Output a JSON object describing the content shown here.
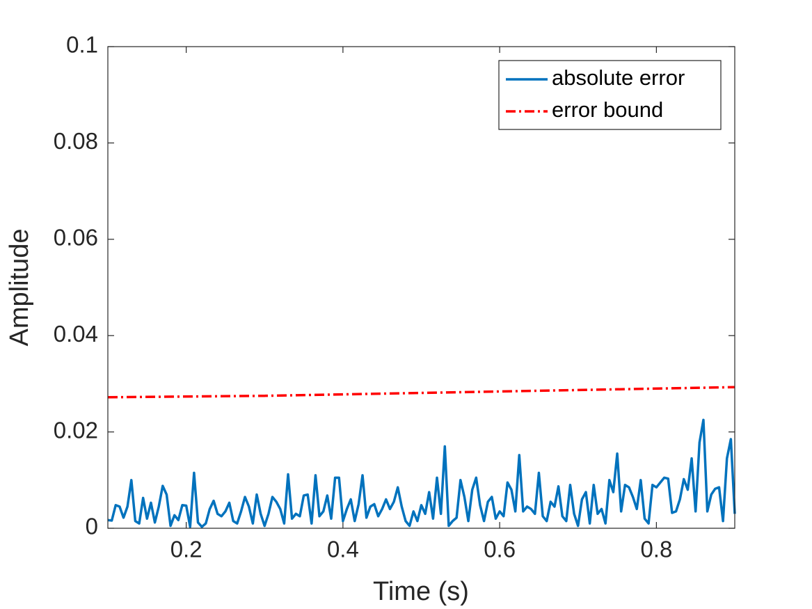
{
  "chart_data": {
    "type": "line",
    "xlabel": "Time (s)",
    "ylabel": "Amplitude",
    "xlim": [
      0.1,
      0.9
    ],
    "ylim": [
      0,
      0.1
    ],
    "xticks": [
      0.2,
      0.4,
      0.6,
      0.8
    ],
    "yticks": [
      0,
      0.02,
      0.04,
      0.06,
      0.08,
      0.1
    ],
    "legend": "northeast",
    "series": [
      {
        "name": "absolute error",
        "color": "#0072BD",
        "style": "solid",
        "x": [
          0.1,
          0.105,
          0.11,
          0.115,
          0.12,
          0.125,
          0.13,
          0.135,
          0.14,
          0.145,
          0.15,
          0.155,
          0.16,
          0.165,
          0.17,
          0.175,
          0.18,
          0.185,
          0.19,
          0.195,
          0.2,
          0.205,
          0.21,
          0.215,
          0.22,
          0.225,
          0.23,
          0.235,
          0.24,
          0.245,
          0.25,
          0.255,
          0.26,
          0.265,
          0.27,
          0.275,
          0.28,
          0.285,
          0.29,
          0.295,
          0.3,
          0.305,
          0.31,
          0.315,
          0.32,
          0.325,
          0.33,
          0.335,
          0.34,
          0.345,
          0.35,
          0.355,
          0.36,
          0.365,
          0.37,
          0.375,
          0.38,
          0.385,
          0.39,
          0.395,
          0.4,
          0.405,
          0.41,
          0.415,
          0.42,
          0.425,
          0.43,
          0.435,
          0.44,
          0.445,
          0.45,
          0.455,
          0.46,
          0.465,
          0.47,
          0.475,
          0.48,
          0.485,
          0.49,
          0.495,
          0.5,
          0.505,
          0.51,
          0.515,
          0.52,
          0.525,
          0.53,
          0.535,
          0.54,
          0.545,
          0.55,
          0.555,
          0.56,
          0.565,
          0.57,
          0.575,
          0.58,
          0.585,
          0.59,
          0.595,
          0.6,
          0.605,
          0.61,
          0.615,
          0.62,
          0.625,
          0.63,
          0.635,
          0.64,
          0.645,
          0.65,
          0.655,
          0.66,
          0.665,
          0.67,
          0.675,
          0.68,
          0.685,
          0.69,
          0.695,
          0.7,
          0.705,
          0.71,
          0.715,
          0.72,
          0.725,
          0.73,
          0.735,
          0.74,
          0.745,
          0.75,
          0.755,
          0.76,
          0.765,
          0.77,
          0.775,
          0.78,
          0.785,
          0.79,
          0.795,
          0.8,
          0.805,
          0.81,
          0.815,
          0.82,
          0.825,
          0.83,
          0.835,
          0.84,
          0.845,
          0.85,
          0.855,
          0.86,
          0.865,
          0.87,
          0.875,
          0.88,
          0.885,
          0.89,
          0.895,
          0.9
        ],
        "values": [
          0.0017,
          0.0016,
          0.0048,
          0.0045,
          0.0022,
          0.0045,
          0.01,
          0.0015,
          0.001,
          0.0063,
          0.002,
          0.0053,
          0.0012,
          0.0045,
          0.0088,
          0.007,
          0.0005,
          0.0027,
          0.0017,
          0.0048,
          0.0047,
          0.0003,
          0.0115,
          0.0012,
          0.0003,
          0.001,
          0.004,
          0.0057,
          0.003,
          0.0025,
          0.0035,
          0.0053,
          0.0015,
          0.001,
          0.0035,
          0.0065,
          0.0045,
          0.001,
          0.007,
          0.003,
          0.0005,
          0.003,
          0.0065,
          0.0055,
          0.004,
          0.001,
          0.0112,
          0.002,
          0.003,
          0.0025,
          0.0068,
          0.007,
          0.001,
          0.011,
          0.0025,
          0.0035,
          0.0068,
          0.002,
          0.0105,
          0.0105,
          0.0015,
          0.004,
          0.006,
          0.0015,
          0.005,
          0.011,
          0.0022,
          0.0045,
          0.005,
          0.0025,
          0.004,
          0.006,
          0.004,
          0.0055,
          0.0085,
          0.0045,
          0.0015,
          0.0005,
          0.0035,
          0.0015,
          0.0048,
          0.003,
          0.0075,
          0.002,
          0.0105,
          0.003,
          0.017,
          0.0005,
          0.0015,
          0.0022,
          0.01,
          0.0065,
          0.0015,
          0.008,
          0.0105,
          0.0048,
          0.0015,
          0.0055,
          0.0065,
          0.002,
          0.0035,
          0.0025,
          0.0095,
          0.008,
          0.0035,
          0.0152,
          0.0035,
          0.0045,
          0.004,
          0.003,
          0.0115,
          0.0025,
          0.0015,
          0.0055,
          0.0045,
          0.0087,
          0.0025,
          0.0015,
          0.009,
          0.003,
          0.0005,
          0.006,
          0.0075,
          0.001,
          0.009,
          0.003,
          0.004,
          0.001,
          0.01,
          0.0075,
          0.0155,
          0.0035,
          0.009,
          0.0085,
          0.0065,
          0.004,
          0.01,
          0.002,
          0.001,
          0.009,
          0.0085,
          0.0095,
          0.0105,
          0.0103,
          0.0032,
          0.0035,
          0.006,
          0.0102,
          0.008,
          0.0145,
          0.0035,
          0.0178,
          0.0225,
          0.0035,
          0.007,
          0.0082,
          0.0085,
          0.0015,
          0.0145,
          0.0185,
          0.003
        ]
      },
      {
        "name": "error bound",
        "color": "#FF0000",
        "style": "dashdot",
        "x": [
          0.1,
          0.3,
          0.5,
          0.7,
          0.9
        ],
        "values": [
          0.0272,
          0.0275,
          0.0281,
          0.0287,
          0.0293
        ]
      }
    ]
  }
}
